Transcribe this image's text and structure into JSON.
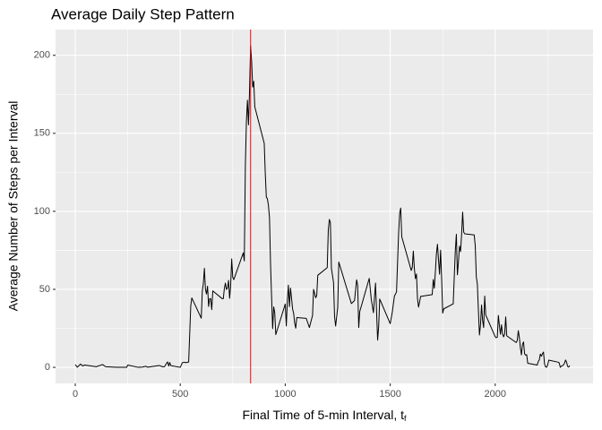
{
  "chart_data": {
    "type": "line",
    "title": "Average Daily Step Pattern",
    "xlabel": {
      "text": "Final Time of 5-min Interval, t",
      "sub": "f"
    },
    "ylabel": "Average Number of Steps per Interval",
    "xlim": [
      -94,
      2466
    ],
    "ylim": [
      -10.3,
      216.5
    ],
    "xticks": [
      0,
      500,
      1000,
      1500,
      2000
    ],
    "yticks": [
      0,
      50,
      100,
      150,
      200
    ],
    "xminor": [
      250,
      750,
      1250,
      1750,
      2250
    ],
    "yminor": [
      25,
      75,
      125,
      175
    ],
    "grid": true,
    "vline": {
      "x": 835,
      "color": "#ff0000"
    },
    "x": [
      0,
      10,
      25,
      35,
      45,
      100,
      130,
      145,
      200,
      230,
      245,
      250,
      300,
      320,
      335,
      345,
      400,
      415,
      425,
      435,
      440,
      445,
      450,
      455,
      500,
      510,
      520,
      525,
      540,
      550,
      555,
      600,
      605,
      610,
      615,
      620,
      625,
      630,
      635,
      640,
      645,
      650,
      655,
      700,
      705,
      710,
      715,
      720,
      725,
      730,
      735,
      740,
      745,
      750,
      755,
      800,
      805,
      810,
      815,
      820,
      825,
      830,
      835,
      840,
      845,
      850,
      855,
      900,
      905,
      910,
      915,
      920,
      925,
      930,
      935,
      940,
      945,
      950,
      955,
      1000,
      1005,
      1010,
      1015,
      1020,
      1025,
      1030,
      1035,
      1040,
      1045,
      1050,
      1055,
      1100,
      1115,
      1130,
      1135,
      1145,
      1150,
      1155,
      1200,
      1205,
      1210,
      1215,
      1220,
      1230,
      1235,
      1240,
      1250,
      1255,
      1315,
      1330,
      1340,
      1345,
      1350,
      1355,
      1400,
      1410,
      1420,
      1430,
      1440,
      1445,
      1450,
      1500,
      1510,
      1520,
      1530,
      1540,
      1545,
      1550,
      1555,
      1600,
      1605,
      1610,
      1615,
      1620,
      1625,
      1630,
      1635,
      1645,
      1700,
      1705,
      1710,
      1715,
      1720,
      1725,
      1730,
      1735,
      1740,
      1745,
      1750,
      1755,
      1800,
      1805,
      1810,
      1815,
      1820,
      1825,
      1830,
      1835,
      1840,
      1845,
      1850,
      1855,
      1900,
      1905,
      1910,
      1915,
      1920,
      1925,
      1930,
      1935,
      1940,
      1945,
      1950,
      1955,
      2000,
      2005,
      2010,
      2015,
      2020,
      2025,
      2030,
      2035,
      2040,
      2045,
      2050,
      2055,
      2100,
      2105,
      2110,
      2115,
      2120,
      2125,
      2130,
      2135,
      2140,
      2145,
      2150,
      2155,
      2200,
      2205,
      2210,
      2215,
      2220,
      2225,
      2230,
      2235,
      2240,
      2245,
      2250,
      2255,
      2300,
      2305,
      2310,
      2315,
      2320,
      2325,
      2330,
      2335,
      2340,
      2345,
      2350,
      2355
    ],
    "series": [
      {
        "name": "steps",
        "color": "#000000",
        "values": [
          1.7,
          0.1,
          2.1,
          0.9,
          1.5,
          0.4,
          1.8,
          0.4,
          0,
          0,
          0,
          1.5,
          0,
          0.2,
          0.7,
          0.1,
          1.2,
          0.4,
          0.4,
          2.7,
          3.5,
          0.8,
          3.1,
          1.1,
          0,
          3,
          3.3,
          3,
          3.4,
          39.5,
          44.5,
          31.5,
          49,
          53.8,
          63.5,
          50,
          47,
          52,
          39,
          44,
          44,
          37,
          49,
          44,
          44,
          50.5,
          54,
          49.9,
          50.9,
          55.7,
          44.3,
          52.3,
          69.5,
          57.8,
          56.2,
          73.4,
          68.2,
          129.4,
          157.5,
          171.2,
          155.4,
          177.3,
          206.2,
          195.9,
          179.6,
          183.4,
          167,
          143.5,
          124,
          109.1,
          108.1,
          103.7,
          95.9,
          66.2,
          45.2,
          24.8,
          38.8,
          35,
          21,
          40.6,
          26.5,
          42.4,
          52.7,
          38.9,
          50.8,
          44.3,
          37.4,
          34.7,
          28.3,
          25.1,
          31.9,
          31.4,
          25.5,
          33.3,
          50,
          44.6,
          46,
          59,
          63.9,
          87.7,
          94.8,
          92.8,
          63.4,
          54.5,
          32.4,
          26.5,
          38.3,
          67.5,
          40.9,
          42.8,
          56.1,
          52.5,
          25.5,
          35.8,
          57,
          43.4,
          35,
          54,
          17.5,
          26.1,
          43.8,
          28,
          35.5,
          45.7,
          48.3,
          86.3,
          98.8,
          102.1,
          83.7,
          62.1,
          64.1,
          74.5,
          63.2,
          56.9,
          59.8,
          43.9,
          38.6,
          45.5,
          46.6,
          56.3,
          50.7,
          61.2,
          72.7,
          78.9,
          68.9,
          59.7,
          75.1,
          56.5,
          34.8,
          37.5,
          40.7,
          58,
          74.7,
          85.3,
          59.3,
          67.8,
          77.7,
          74.2,
          85.3,
          99.5,
          86.6,
          85.6,
          84.9,
          77.8,
          58,
          53.4,
          36.3,
          20.7,
          27.4,
          40,
          30.2,
          25.5,
          45.7,
          33.5,
          19.6,
          19,
          19.3,
          33.3,
          26.8,
          21.2,
          27.3,
          21.3,
          19.5,
          21.3,
          32.3,
          20.2,
          15.9,
          17.2,
          23.5,
          19.2,
          12.5,
          8,
          14.7,
          16.3,
          8.7,
          7.8,
          8.1,
          2.6,
          1.5,
          3.7,
          4.8,
          8.5,
          7.1,
          8.7,
          9.8,
          2.2,
          0.3,
          0.1,
          1.6,
          4.6,
          3.3,
          2.8,
          0,
          0.8,
          1,
          1.6,
          2.6,
          4.7,
          3.3,
          0.6,
          0.2,
          1.1
        ]
      }
    ]
  }
}
